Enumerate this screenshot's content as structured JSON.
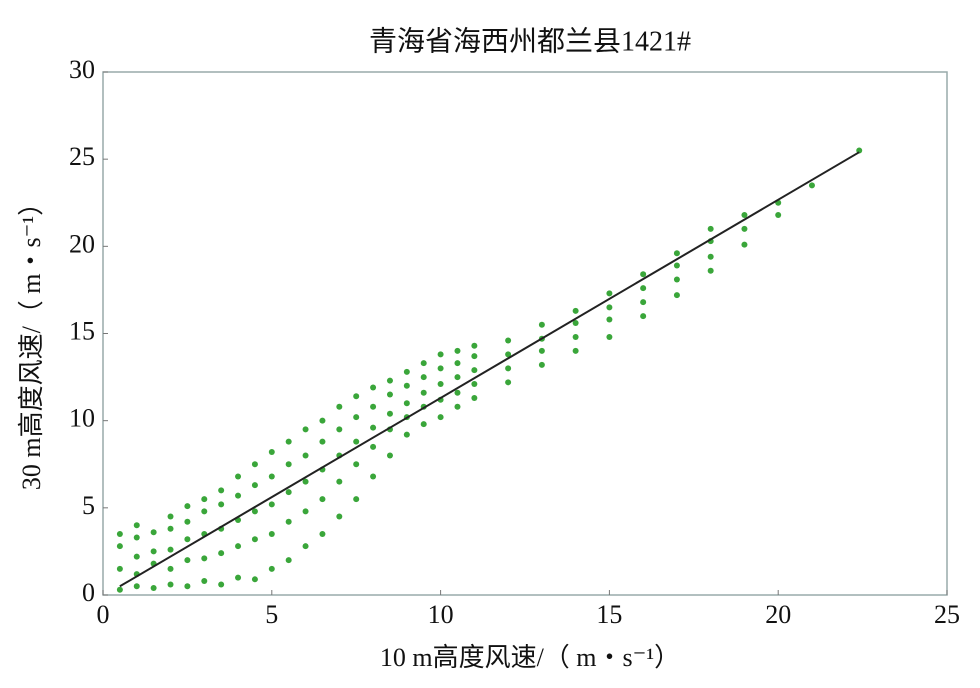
{
  "chart_data": {
    "type": "scatter",
    "title": "青海省海西州都兰县1421#",
    "x_label": "10 m高度风速/（ m・s⁻¹）",
    "y_label": "30 m高度风速/（ m・s⁻¹）",
    "xlim": [
      0,
      25
    ],
    "ylim": [
      0,
      30
    ],
    "xticks": [
      0,
      5,
      10,
      15,
      20,
      25
    ],
    "yticks": [
      0,
      5,
      10,
      15,
      20,
      25,
      30
    ],
    "series": [
      {
        "color": "#3aa63a",
        "x": [
          0.5,
          0.5,
          0.5,
          0.5,
          1,
          1,
          1,
          1,
          1,
          1.5,
          1.5,
          1.5,
          1.5,
          2,
          2,
          2,
          2,
          2,
          2.5,
          2.5,
          2.5,
          2.5,
          2.5,
          3,
          3,
          3,
          3,
          3,
          3.5,
          3.5,
          3.5,
          3.5,
          3.5,
          4,
          4,
          4,
          4,
          4,
          4.5,
          4.5,
          4.5,
          4.5,
          4.5,
          5,
          5,
          5,
          5,
          5,
          5.5,
          5.5,
          5.5,
          5.5,
          5.5,
          6,
          6,
          6,
          6,
          6,
          6.5,
          6.5,
          6.5,
          6.5,
          6.5,
          7,
          7,
          7,
          7,
          7,
          7.5,
          7.5,
          7.5,
          7.5,
          7.5,
          8,
          8,
          8,
          8,
          8,
          8.5,
          8.5,
          8.5,
          8.5,
          8.5,
          9,
          9,
          9,
          9,
          9,
          9.5,
          9.5,
          9.5,
          9.5,
          9.5,
          10,
          10,
          10,
          10,
          10,
          10.5,
          10.5,
          10.5,
          10.5,
          10.5,
          11,
          11,
          11,
          11,
          11,
          12,
          12,
          12,
          12,
          13,
          13,
          13,
          13,
          14,
          14,
          14,
          14,
          15,
          15,
          15,
          15,
          16,
          16,
          16,
          16,
          17,
          17,
          17,
          17,
          18,
          18,
          18,
          18,
          19,
          19,
          19,
          20,
          20,
          21,
          22.4
        ],
        "values": [
          0.3,
          1.5,
          2.8,
          3.5,
          0.5,
          1.2,
          2.2,
          3.3,
          4.0,
          0.4,
          1.8,
          2.5,
          3.6,
          0.6,
          1.5,
          2.6,
          3.8,
          4.5,
          0.5,
          2.0,
          3.2,
          4.2,
          5.1,
          0.8,
          2.1,
          3.5,
          4.8,
          5.5,
          0.6,
          2.4,
          3.8,
          5.2,
          6.0,
          1.0,
          2.8,
          4.3,
          5.7,
          6.8,
          0.9,
          3.2,
          4.8,
          6.3,
          7.5,
          1.5,
          3.5,
          5.2,
          6.8,
          8.2,
          2.0,
          4.2,
          5.9,
          7.5,
          8.8,
          2.8,
          4.8,
          6.5,
          8.0,
          9.5,
          3.5,
          5.5,
          7.2,
          8.8,
          10.0,
          4.5,
          6.5,
          8.0,
          9.5,
          10.8,
          5.5,
          7.5,
          8.8,
          10.2,
          11.4,
          6.8,
          8.5,
          9.6,
          10.8,
          11.9,
          8.0,
          9.5,
          10.4,
          11.5,
          12.3,
          9.2,
          10.2,
          11.0,
          12.0,
          12.8,
          9.8,
          10.8,
          11.6,
          12.5,
          13.3,
          10.2,
          11.2,
          12.1,
          13.0,
          13.8,
          10.8,
          11.6,
          12.5,
          13.3,
          14.0,
          11.3,
          12.1,
          12.9,
          13.7,
          14.3,
          12.2,
          13.0,
          13.8,
          14.6,
          13.2,
          14.0,
          14.7,
          15.5,
          14.0,
          14.8,
          15.6,
          16.3,
          14.8,
          15.8,
          16.5,
          17.3,
          16.0,
          16.8,
          17.6,
          18.4,
          17.2,
          18.1,
          18.9,
          19.6,
          18.6,
          19.4,
          20.3,
          21.0,
          20.1,
          21.0,
          21.8,
          21.8,
          22.5,
          23.5,
          25.5
        ]
      },
      {
        "type": "line",
        "color": "#222222",
        "x": [
          0.5,
          22.4
        ],
        "values": [
          0.5,
          25.4
        ]
      }
    ]
  }
}
